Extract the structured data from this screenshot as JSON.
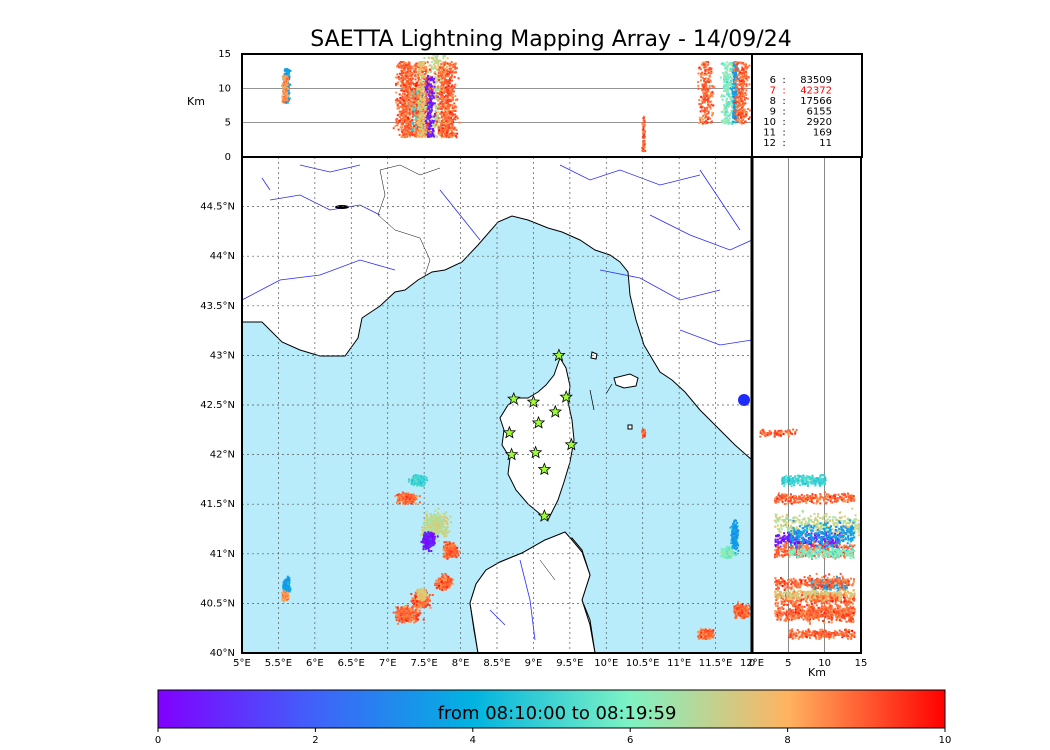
{
  "chart_data": {
    "type": "scatter",
    "title": "SAETTA Lightning Mapping Array - 14/09/24",
    "colors": {
      "sea": "#b8ecfb",
      "land": "#ffffff",
      "river": "#2a2aff",
      "station_fill": "#9cff33",
      "highlight_stat": "#ff0000"
    },
    "altitude_axis": {
      "label": "Km",
      "range": [
        0,
        15
      ],
      "ticks": [
        "0",
        "5",
        "10",
        "15"
      ]
    },
    "longitude_axis": {
      "range": [
        5,
        12
      ],
      "ticks": [
        "5°E",
        "5.5°E",
        "6°E",
        "6.5°E",
        "7°E",
        "7.5°E",
        "8°E",
        "8.5°E",
        "9°E",
        "9.5°E",
        "10°E",
        "10.5°E",
        "11°E",
        "11.5°E",
        "12°E"
      ]
    },
    "latitude_axis": {
      "range": [
        40,
        45
      ],
      "ticks": [
        "40°N",
        "40.5°N",
        "41°N",
        "41.5°N",
        "42°N",
        "42.5°N",
        "43°N",
        "43.5°N",
        "44°N",
        "44.5°N"
      ]
    },
    "stations": [
      {
        "lon": 9.35,
        "lat": 43.0
      },
      {
        "lon": 8.73,
        "lat": 42.56
      },
      {
        "lon": 9.0,
        "lat": 42.53
      },
      {
        "lon": 9.45,
        "lat": 42.58
      },
      {
        "lon": 9.3,
        "lat": 42.43
      },
      {
        "lon": 9.07,
        "lat": 42.32
      },
      {
        "lon": 8.67,
        "lat": 42.22
      },
      {
        "lon": 9.52,
        "lat": 42.1
      },
      {
        "lon": 8.7,
        "lat": 42.0
      },
      {
        "lon": 9.03,
        "lat": 42.02
      },
      {
        "lon": 9.15,
        "lat": 41.85
      },
      {
        "lon": 9.15,
        "lat": 41.38
      }
    ],
    "stations_stats": [
      {
        "stations": "6",
        "sep": ":",
        "count": "83509"
      },
      {
        "stations": "7",
        "sep": ":",
        "count": "42372"
      },
      {
        "stations": "8",
        "sep": ":",
        "count": "17566"
      },
      {
        "stations": "9",
        "sep": ":",
        "count": "6155"
      },
      {
        "stations": "10",
        "sep": ":",
        "count": "2920"
      },
      {
        "stations": "11",
        "sep": ":",
        "count": "169"
      },
      {
        "stations": "12",
        "sep": ":",
        "count": "11"
      }
    ],
    "highlighted_stat_row": 1,
    "lightning_clusters": [
      {
        "lon": 5.6,
        "lat": 40.7,
        "rlon": 0.05,
        "rlat": 0.08,
        "t": 3.5,
        "alt": [
          8,
          13
        ]
      },
      {
        "lon": 5.58,
        "lat": 40.58,
        "rlon": 0.05,
        "rlat": 0.05,
        "t": 8.5,
        "alt": [
          8,
          12
        ]
      },
      {
        "lon": 7.25,
        "lat": 41.57,
        "rlon": 0.15,
        "rlat": 0.06,
        "t": 9.0,
        "alt": [
          3,
          14
        ]
      },
      {
        "lon": 7.4,
        "lat": 41.75,
        "rlon": 0.12,
        "rlat": 0.06,
        "t": 5.0,
        "alt": [
          4,
          10
        ]
      },
      {
        "lon": 7.65,
        "lat": 41.3,
        "rlon": 0.2,
        "rlat": 0.15,
        "t": 7.0,
        "alt": [
          3,
          15
        ]
      },
      {
        "lon": 7.55,
        "lat": 41.15,
        "rlon": 0.1,
        "rlat": 0.1,
        "t": 0.5,
        "alt": [
          3,
          12
        ]
      },
      {
        "lon": 7.85,
        "lat": 41.04,
        "rlon": 0.12,
        "rlat": 0.09,
        "t": 9.0,
        "alt": [
          3,
          14
        ]
      },
      {
        "lon": 7.75,
        "lat": 40.72,
        "rlon": 0.12,
        "rlat": 0.08,
        "t": 9.0,
        "alt": [
          3,
          14
        ]
      },
      {
        "lon": 7.45,
        "lat": 40.55,
        "rlon": 0.14,
        "rlat": 0.08,
        "t": 9.0,
        "alt": [
          3,
          14
        ]
      },
      {
        "lon": 7.25,
        "lat": 40.4,
        "rlon": 0.2,
        "rlat": 0.09,
        "t": 9.0,
        "alt": [
          3,
          14
        ]
      },
      {
        "lon": 7.45,
        "lat": 40.6,
        "rlon": 0.08,
        "rlat": 0.06,
        "t": 7.5,
        "alt": [
          3,
          14
        ]
      },
      {
        "lon": 10.5,
        "lat": 42.23,
        "rlon": 0.02,
        "rlat": 0.04,
        "t": 9.0,
        "alt": [
          1,
          6
        ]
      },
      {
        "lon": 11.75,
        "lat": 41.2,
        "rlon": 0.05,
        "rlat": 0.15,
        "t": 3.5,
        "alt": [
          5,
          14
        ]
      },
      {
        "lon": 11.65,
        "lat": 41.02,
        "rlon": 0.1,
        "rlat": 0.06,
        "t": 6.0,
        "alt": [
          5,
          14
        ]
      },
      {
        "lon": 11.35,
        "lat": 40.2,
        "rlon": 0.12,
        "rlat": 0.05,
        "t": 9.0,
        "alt": [
          5,
          14
        ]
      },
      {
        "lon": 11.85,
        "lat": 40.43,
        "rlon": 0.12,
        "rlat": 0.08,
        "t": 9.0,
        "alt": [
          5,
          14
        ]
      }
    ]
  },
  "colorbar": {
    "label": "from 08:10:00 to 08:19:59",
    "range": [
      0,
      10
    ],
    "ticks": [
      "0",
      "2",
      "4",
      "6",
      "8",
      "10"
    ]
  }
}
